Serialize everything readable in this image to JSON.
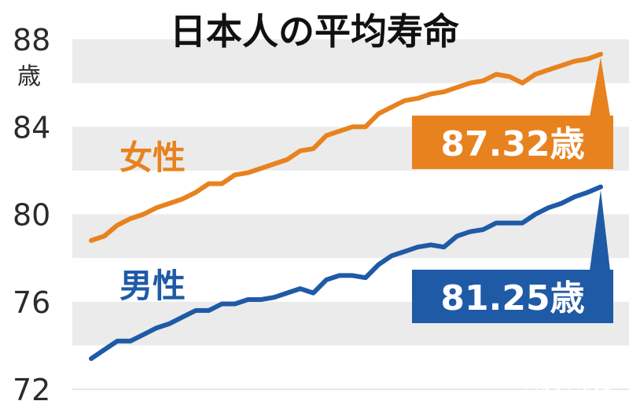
{
  "watermark": "风易号 | 何为惠",
  "chart_data": {
    "type": "line",
    "title": "日本人の平均寿命",
    "ylabel_unit": "歳",
    "ylim": [
      72,
      88
    ],
    "yticks": [
      "88",
      "84",
      "80",
      "76",
      "72"
    ],
    "grid": "horizontal bands",
    "series": [
      {
        "name": "女性",
        "color": "#e8821e",
        "values": [
          78.8,
          79.0,
          79.5,
          79.8,
          80.0,
          80.3,
          80.5,
          80.7,
          81.0,
          81.4,
          81.4,
          81.8,
          81.9,
          82.1,
          82.3,
          82.5,
          82.9,
          83.0,
          83.6,
          83.8,
          84.0,
          84.0,
          84.6,
          84.9,
          85.2,
          85.3,
          85.5,
          85.6,
          85.8,
          86.0,
          86.1,
          86.4,
          86.3,
          86.0,
          86.4,
          86.6,
          86.8,
          87.0,
          87.1,
          87.32
        ],
        "callout": "87.32歳"
      },
      {
        "name": "男性",
        "color": "#1f5aa6",
        "values": [
          73.4,
          73.8,
          74.2,
          74.2,
          74.5,
          74.8,
          75.0,
          75.3,
          75.6,
          75.6,
          75.9,
          75.9,
          76.1,
          76.1,
          76.2,
          76.4,
          76.6,
          76.4,
          77.0,
          77.2,
          77.2,
          77.1,
          77.7,
          78.1,
          78.3,
          78.5,
          78.6,
          78.5,
          79.0,
          79.2,
          79.3,
          79.6,
          79.6,
          79.6,
          80.0,
          80.3,
          80.5,
          80.8,
          81.0,
          81.25
        ],
        "callout": "81.25歳"
      }
    ]
  }
}
